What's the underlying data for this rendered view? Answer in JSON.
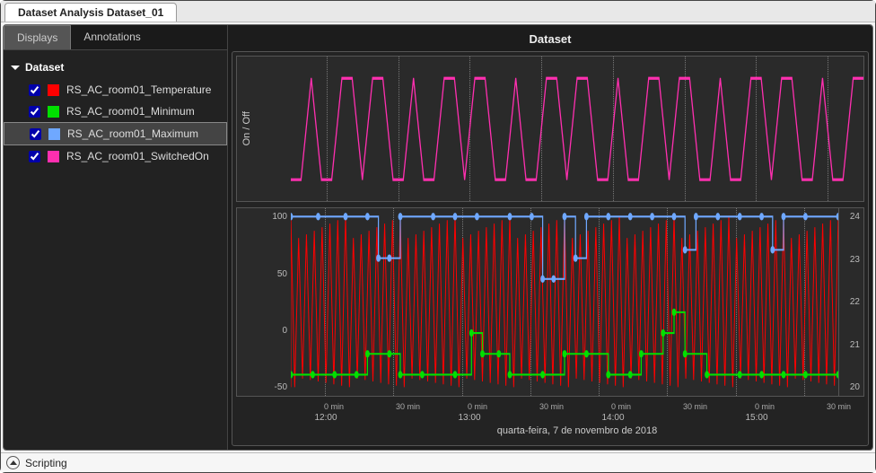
{
  "window": {
    "title": "Dataset Analysis Dataset_01"
  },
  "sidebar": {
    "tabs": {
      "displays": "Displays",
      "annotations": "Annotations",
      "active": "displays"
    },
    "root_label": "Dataset",
    "series": [
      {
        "label": "RS_AC_room01_Temperature",
        "color": "#ff0000",
        "checked": true,
        "selected": false
      },
      {
        "label": "RS_AC_room01_Minimum",
        "color": "#00e000",
        "checked": true,
        "selected": false
      },
      {
        "label": "RS_AC_room01_Maximum",
        "color": "#6fa8ff",
        "checked": true,
        "selected": true
      },
      {
        "label": "RS_AC_room01_SwitchedOn",
        "color": "#ff2fb0",
        "checked": true,
        "selected": false
      }
    ]
  },
  "chart": {
    "title": "Dataset",
    "background": "#2a2a2a",
    "grid_color": "#777777",
    "top_panel": {
      "ylabel": "On / Off",
      "series_color": "#ff2fb0",
      "line_width": 2,
      "ylim": [
        0,
        1
      ],
      "toggles_per_hour": 14
    },
    "bottom_panel": {
      "left_ticks": [
        "-50",
        "0",
        "50",
        "100"
      ],
      "right_ticks": [
        "20",
        "21",
        "22",
        "23",
        "24"
      ],
      "right_ylim": [
        20,
        24.5
      ],
      "temperature": {
        "color": "#ff0000",
        "line_width": 1.6,
        "osc_low": 20.2,
        "osc_high": 24.3,
        "cycles": 70
      },
      "minimum": {
        "color": "#00e000",
        "line_width": 2,
        "marker": "circle",
        "marker_size": 4,
        "points": [
          [
            0.0,
            20.5
          ],
          [
            0.04,
            20.5
          ],
          [
            0.08,
            20.5
          ],
          [
            0.12,
            20.5
          ],
          [
            0.14,
            21.0
          ],
          [
            0.18,
            21.0
          ],
          [
            0.2,
            20.5
          ],
          [
            0.24,
            20.5
          ],
          [
            0.3,
            20.5
          ],
          [
            0.33,
            21.5
          ],
          [
            0.35,
            21.0
          ],
          [
            0.38,
            21.0
          ],
          [
            0.4,
            20.5
          ],
          [
            0.46,
            20.5
          ],
          [
            0.5,
            21.0
          ],
          [
            0.54,
            21.0
          ],
          [
            0.58,
            20.5
          ],
          [
            0.62,
            20.5
          ],
          [
            0.64,
            21.0
          ],
          [
            0.68,
            21.5
          ],
          [
            0.7,
            22.0
          ],
          [
            0.72,
            21.0
          ],
          [
            0.76,
            20.5
          ],
          [
            0.82,
            20.5
          ],
          [
            0.86,
            20.5
          ],
          [
            0.9,
            20.5
          ],
          [
            0.94,
            20.5
          ],
          [
            1.0,
            20.5
          ]
        ]
      },
      "maximum": {
        "color": "#6fa8ff",
        "line_width": 2,
        "marker": "circle",
        "marker_size": 4,
        "points": [
          [
            0.0,
            24.3
          ],
          [
            0.05,
            24.3
          ],
          [
            0.1,
            24.3
          ],
          [
            0.14,
            24.3
          ],
          [
            0.16,
            23.3
          ],
          [
            0.18,
            23.3
          ],
          [
            0.2,
            24.3
          ],
          [
            0.26,
            24.3
          ],
          [
            0.3,
            24.3
          ],
          [
            0.34,
            24.3
          ],
          [
            0.4,
            24.3
          ],
          [
            0.44,
            24.3
          ],
          [
            0.46,
            22.8
          ],
          [
            0.48,
            22.8
          ],
          [
            0.5,
            24.3
          ],
          [
            0.52,
            23.3
          ],
          [
            0.54,
            24.3
          ],
          [
            0.58,
            24.3
          ],
          [
            0.62,
            24.3
          ],
          [
            0.66,
            24.3
          ],
          [
            0.7,
            24.3
          ],
          [
            0.72,
            23.5
          ],
          [
            0.74,
            24.3
          ],
          [
            0.78,
            24.3
          ],
          [
            0.82,
            24.3
          ],
          [
            0.86,
            24.3
          ],
          [
            0.88,
            23.5
          ],
          [
            0.9,
            24.3
          ],
          [
            0.94,
            24.3
          ],
          [
            1.0,
            24.3
          ]
        ]
      }
    },
    "xaxis": {
      "majors": [
        {
          "pos": 0.0625,
          "label": "12:00"
        },
        {
          "pos": 0.3125,
          "label": "13:00"
        },
        {
          "pos": 0.5625,
          "label": "14:00"
        },
        {
          "pos": 0.8125,
          "label": "15:00"
        }
      ],
      "minors": [
        {
          "pos": 0.0625,
          "label": "0 min"
        },
        {
          "pos": 0.1875,
          "label": "30 min"
        },
        {
          "pos": 0.3125,
          "label": "0 min"
        },
        {
          "pos": 0.4375,
          "label": "30 min"
        },
        {
          "pos": 0.5625,
          "label": "0 min"
        },
        {
          "pos": 0.6875,
          "label": "30 min"
        },
        {
          "pos": 0.8125,
          "label": "0 min"
        },
        {
          "pos": 0.9375,
          "label": "30 min"
        }
      ],
      "gridlines": [
        0.0625,
        0.1875,
        0.3125,
        0.4375,
        0.5625,
        0.6875,
        0.8125,
        0.9375
      ],
      "caption": "quarta-feira, 7 de novembro de 2018"
    }
  },
  "footer": {
    "scripting": "Scripting"
  }
}
